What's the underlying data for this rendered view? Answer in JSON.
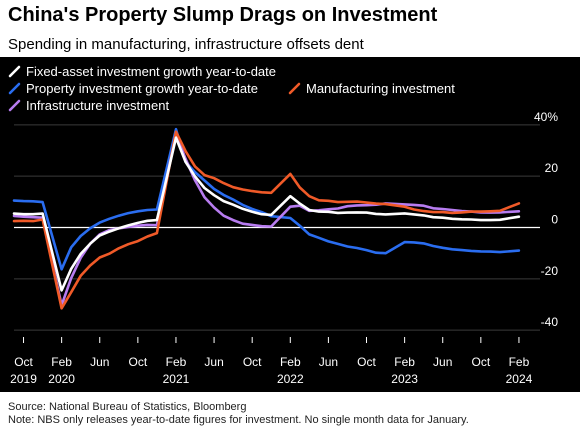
{
  "title": "China's Property Slump Drags on Investment",
  "subtitle": "Spending in manufacturing, infrastructure offsets dent",
  "source": "Source: National Bureau of Statistics, Bloomberg",
  "note": "Note: NBS only releases year-to-date figures for investment. No single month data for January.",
  "chart_data": {
    "type": "line",
    "title": "China's Property Slump Drags on Investment",
    "subtitle": "Spending in manufacturing, infrastructure offsets dent",
    "xlabel": "",
    "ylabel": "",
    "ylim": [
      -45,
      45
    ],
    "y_ticks": [
      40,
      20,
      0,
      -20,
      -40
    ],
    "y_tick_labels": [
      "40%",
      "20",
      "0",
      "-20",
      "-40"
    ],
    "x_range": [
      "2019-09",
      "2024-04"
    ],
    "x_ticks": [
      {
        "date": "2019-10",
        "label": "Oct",
        "year": "2019"
      },
      {
        "date": "2020-02",
        "label": "Feb",
        "year": "2020"
      },
      {
        "date": "2020-06",
        "label": "Jun",
        "year": ""
      },
      {
        "date": "2020-10",
        "label": "Oct",
        "year": ""
      },
      {
        "date": "2021-02",
        "label": "Feb",
        "year": "2021"
      },
      {
        "date": "2021-06",
        "label": "Jun",
        "year": ""
      },
      {
        "date": "2021-10",
        "label": "Oct",
        "year": ""
      },
      {
        "date": "2022-02",
        "label": "Feb",
        "year": "2022"
      },
      {
        "date": "2022-06",
        "label": "Jun",
        "year": ""
      },
      {
        "date": "2022-10",
        "label": "Oct",
        "year": ""
      },
      {
        "date": "2023-02",
        "label": "Feb",
        "year": "2023"
      },
      {
        "date": "2023-06",
        "label": "Jun",
        "year": ""
      },
      {
        "date": "2023-10",
        "label": "Oct",
        "year": ""
      },
      {
        "date": "2024-02",
        "label": "Feb",
        "year": "2024"
      }
    ],
    "legend": {
      "placement": "top-left"
    },
    "series": [
      {
        "name": "Fixed-asset investment growth year-to-date",
        "color": "#ffffff",
        "points": [
          [
            "2019-09",
            5.4
          ],
          [
            "2019-10",
            5.2
          ],
          [
            "2019-11",
            5.2
          ],
          [
            "2019-12",
            5.4
          ],
          [
            "2020-02",
            -24.5
          ],
          [
            "2020-03",
            -16.1
          ],
          [
            "2020-04",
            -10.3
          ],
          [
            "2020-05",
            -6.3
          ],
          [
            "2020-06",
            -3.1
          ],
          [
            "2020-07",
            -1.6
          ],
          [
            "2020-08",
            -0.3
          ],
          [
            "2020-09",
            0.8
          ],
          [
            "2020-10",
            1.8
          ],
          [
            "2020-11",
            2.6
          ],
          [
            "2020-12",
            2.9
          ],
          [
            "2021-02",
            35.0
          ],
          [
            "2021-03",
            25.6
          ],
          [
            "2021-04",
            19.9
          ],
          [
            "2021-05",
            15.4
          ],
          [
            "2021-06",
            12.6
          ],
          [
            "2021-07",
            10.3
          ],
          [
            "2021-08",
            8.9
          ],
          [
            "2021-09",
            7.3
          ],
          [
            "2021-10",
            6.1
          ],
          [
            "2021-11",
            5.2
          ],
          [
            "2021-12",
            4.9
          ],
          [
            "2022-02",
            12.2
          ],
          [
            "2022-03",
            9.3
          ],
          [
            "2022-04",
            6.8
          ],
          [
            "2022-05",
            6.2
          ],
          [
            "2022-06",
            6.1
          ],
          [
            "2022-07",
            5.7
          ],
          [
            "2022-08",
            5.8
          ],
          [
            "2022-09",
            5.9
          ],
          [
            "2022-10",
            5.8
          ],
          [
            "2022-11",
            5.3
          ],
          [
            "2022-12",
            5.1
          ],
          [
            "2023-02",
            5.5
          ],
          [
            "2023-03",
            5.1
          ],
          [
            "2023-04",
            4.7
          ],
          [
            "2023-05",
            4.0
          ],
          [
            "2023-06",
            3.8
          ],
          [
            "2023-07",
            3.4
          ],
          [
            "2023-08",
            3.2
          ],
          [
            "2023-09",
            3.1
          ],
          [
            "2023-10",
            2.9
          ],
          [
            "2023-11",
            2.9
          ],
          [
            "2023-12",
            3.0
          ],
          [
            "2024-02",
            4.2
          ]
        ]
      },
      {
        "name": "Property investment growth year-to-date",
        "color": "#2a6df0",
        "points": [
          [
            "2019-09",
            10.5
          ],
          [
            "2019-10",
            10.3
          ],
          [
            "2019-11",
            10.2
          ],
          [
            "2019-12",
            9.9
          ],
          [
            "2020-02",
            -16.3
          ],
          [
            "2020-03",
            -7.7
          ],
          [
            "2020-04",
            -3.3
          ],
          [
            "2020-05",
            -0.3
          ],
          [
            "2020-06",
            1.9
          ],
          [
            "2020-07",
            3.4
          ],
          [
            "2020-08",
            4.6
          ],
          [
            "2020-09",
            5.6
          ],
          [
            "2020-10",
            6.3
          ],
          [
            "2020-11",
            6.8
          ],
          [
            "2020-12",
            7.0
          ],
          [
            "2021-02",
            38.3
          ],
          [
            "2021-03",
            25.6
          ],
          [
            "2021-04",
            21.6
          ],
          [
            "2021-05",
            18.3
          ],
          [
            "2021-06",
            15.0
          ],
          [
            "2021-07",
            12.7
          ],
          [
            "2021-08",
            10.9
          ],
          [
            "2021-09",
            8.8
          ],
          [
            "2021-10",
            7.2
          ],
          [
            "2021-11",
            6.0
          ],
          [
            "2021-12",
            4.4
          ],
          [
            "2022-02",
            3.7
          ],
          [
            "2022-03",
            0.7
          ],
          [
            "2022-04",
            -2.7
          ],
          [
            "2022-05",
            -4.0
          ],
          [
            "2022-06",
            -5.4
          ],
          [
            "2022-07",
            -6.4
          ],
          [
            "2022-08",
            -7.4
          ],
          [
            "2022-09",
            -8.0
          ],
          [
            "2022-10",
            -8.8
          ],
          [
            "2022-11",
            -9.8
          ],
          [
            "2022-12",
            -10.0
          ],
          [
            "2023-02",
            -5.7
          ],
          [
            "2023-03",
            -5.8
          ],
          [
            "2023-04",
            -6.2
          ],
          [
            "2023-05",
            -7.2
          ],
          [
            "2023-06",
            -7.9
          ],
          [
            "2023-07",
            -8.5
          ],
          [
            "2023-08",
            -8.8
          ],
          [
            "2023-09",
            -9.1
          ],
          [
            "2023-10",
            -9.3
          ],
          [
            "2023-11",
            -9.4
          ],
          [
            "2023-12",
            -9.6
          ],
          [
            "2024-02",
            -9.0
          ]
        ]
      },
      {
        "name": "Manufacturing investment",
        "color": "#f05a28",
        "points": [
          [
            "2019-09",
            2.5
          ],
          [
            "2019-10",
            2.6
          ],
          [
            "2019-11",
            2.5
          ],
          [
            "2019-12",
            3.1
          ],
          [
            "2020-02",
            -31.5
          ],
          [
            "2020-03",
            -25.2
          ],
          [
            "2020-04",
            -18.8
          ],
          [
            "2020-05",
            -14.8
          ],
          [
            "2020-06",
            -11.7
          ],
          [
            "2020-07",
            -10.2
          ],
          [
            "2020-08",
            -8.1
          ],
          [
            "2020-09",
            -6.5
          ],
          [
            "2020-10",
            -5.3
          ],
          [
            "2020-11",
            -3.5
          ],
          [
            "2020-12",
            -2.2
          ],
          [
            "2021-02",
            37.3
          ],
          [
            "2021-03",
            29.8
          ],
          [
            "2021-04",
            23.8
          ],
          [
            "2021-05",
            20.4
          ],
          [
            "2021-06",
            19.2
          ],
          [
            "2021-07",
            17.3
          ],
          [
            "2021-08",
            15.7
          ],
          [
            "2021-09",
            14.8
          ],
          [
            "2021-10",
            14.2
          ],
          [
            "2021-11",
            13.7
          ],
          [
            "2021-12",
            13.5
          ],
          [
            "2022-02",
            20.9
          ],
          [
            "2022-03",
            15.6
          ],
          [
            "2022-04",
            12.2
          ],
          [
            "2022-05",
            10.6
          ],
          [
            "2022-06",
            10.4
          ],
          [
            "2022-07",
            9.9
          ],
          [
            "2022-08",
            10.0
          ],
          [
            "2022-09",
            10.1
          ],
          [
            "2022-10",
            9.7
          ],
          [
            "2022-11",
            9.3
          ],
          [
            "2022-12",
            9.1
          ],
          [
            "2023-02",
            8.1
          ],
          [
            "2023-03",
            7.0
          ],
          [
            "2023-04",
            6.4
          ],
          [
            "2023-05",
            6.0
          ],
          [
            "2023-06",
            6.0
          ],
          [
            "2023-07",
            5.7
          ],
          [
            "2023-08",
            5.9
          ],
          [
            "2023-09",
            6.2
          ],
          [
            "2023-10",
            6.2
          ],
          [
            "2023-11",
            6.3
          ],
          [
            "2023-12",
            6.5
          ],
          [
            "2024-02",
            9.4
          ]
        ]
      },
      {
        "name": "Infrastructure investment",
        "color": "#b77cf0",
        "points": [
          [
            "2019-09",
            4.5
          ],
          [
            "2019-10",
            4.2
          ],
          [
            "2019-11",
            4.0
          ],
          [
            "2019-12",
            3.8
          ],
          [
            "2020-02",
            -30.3
          ],
          [
            "2020-03",
            -19.7
          ],
          [
            "2020-04",
            -11.8
          ],
          [
            "2020-05",
            -6.3
          ],
          [
            "2020-06",
            -2.7
          ],
          [
            "2020-07",
            -1.0
          ],
          [
            "2020-08",
            -0.3
          ],
          [
            "2020-09",
            0.2
          ],
          [
            "2020-10",
            0.7
          ],
          [
            "2020-11",
            1.0
          ],
          [
            "2020-12",
            0.9
          ],
          [
            "2021-02",
            36.6
          ],
          [
            "2021-03",
            26.8
          ],
          [
            "2021-04",
            18.4
          ],
          [
            "2021-05",
            11.8
          ],
          [
            "2021-06",
            7.8
          ],
          [
            "2021-07",
            4.6
          ],
          [
            "2021-08",
            2.9
          ],
          [
            "2021-09",
            1.5
          ],
          [
            "2021-10",
            1.0
          ],
          [
            "2021-11",
            0.5
          ],
          [
            "2021-12",
            0.4
          ],
          [
            "2022-02",
            8.1
          ],
          [
            "2022-03",
            8.5
          ],
          [
            "2022-04",
            6.5
          ],
          [
            "2022-05",
            6.7
          ],
          [
            "2022-06",
            7.1
          ],
          [
            "2022-07",
            7.4
          ],
          [
            "2022-08",
            8.3
          ],
          [
            "2022-09",
            8.6
          ],
          [
            "2022-10",
            8.7
          ],
          [
            "2022-11",
            8.9
          ],
          [
            "2022-12",
            9.4
          ],
          [
            "2023-02",
            9.0
          ],
          [
            "2023-03",
            8.8
          ],
          [
            "2023-04",
            8.5
          ],
          [
            "2023-05",
            7.5
          ],
          [
            "2023-06",
            7.2
          ],
          [
            "2023-07",
            6.8
          ],
          [
            "2023-08",
            6.4
          ],
          [
            "2023-09",
            6.2
          ],
          [
            "2023-10",
            5.9
          ],
          [
            "2023-11",
            5.8
          ],
          [
            "2023-12",
            5.9
          ],
          [
            "2024-02",
            6.3
          ]
        ]
      }
    ]
  }
}
